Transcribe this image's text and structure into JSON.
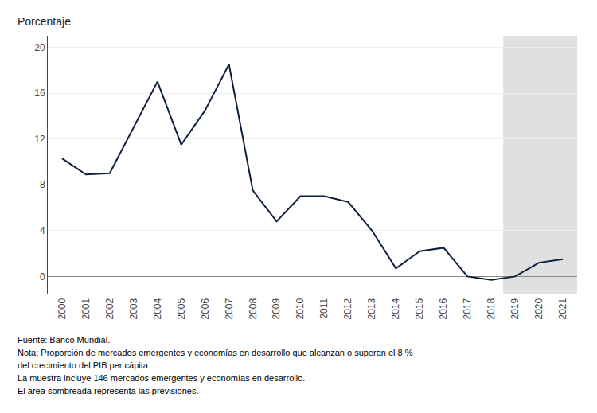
{
  "chart_data": {
    "type": "line",
    "ylabel": "Porcentaje",
    "x": [
      2000,
      2001,
      2002,
      2003,
      2004,
      2005,
      2006,
      2007,
      2008,
      2009,
      2010,
      2011,
      2012,
      2013,
      2014,
      2015,
      2016,
      2017,
      2018,
      2019,
      2020,
      2021
    ],
    "values": [
      10.3,
      8.9,
      9.0,
      13.0,
      17.0,
      11.5,
      14.5,
      18.5,
      7.5,
      4.8,
      7.0,
      7.0,
      6.5,
      4.0,
      0.7,
      2.2,
      2.5,
      0.0,
      -0.3,
      0.0,
      1.2,
      1.5
    ],
    "color": "#0d1f3c",
    "shade": {
      "from": 2018.5,
      "to": 2021.6,
      "color": "#e0e0e0"
    },
    "xlim": [
      1999.4,
      2021.6
    ],
    "xticks": [
      2000,
      2001,
      2002,
      2003,
      2004,
      2005,
      2006,
      2007,
      2008,
      2009,
      2010,
      2011,
      2012,
      2013,
      2014,
      2015,
      2016,
      2017,
      2018,
      2019,
      2020,
      2021
    ],
    "ylim": [
      -1.5,
      21
    ],
    "yticks": [
      0,
      4,
      8,
      12,
      16,
      20
    ],
    "grid": "y",
    "annotations": [
      "Fuente: Banco Mundial.",
      "Nota: Proporción de mercados emergentes y economías en desarrollo que alcanzan o superan el 8 %",
      "del crecimiento del PIB per cápita.",
      "La muestra incluye 146 mercados emergentes y economías en desarrollo.",
      "El área sombreada representa las previsiones."
    ]
  }
}
